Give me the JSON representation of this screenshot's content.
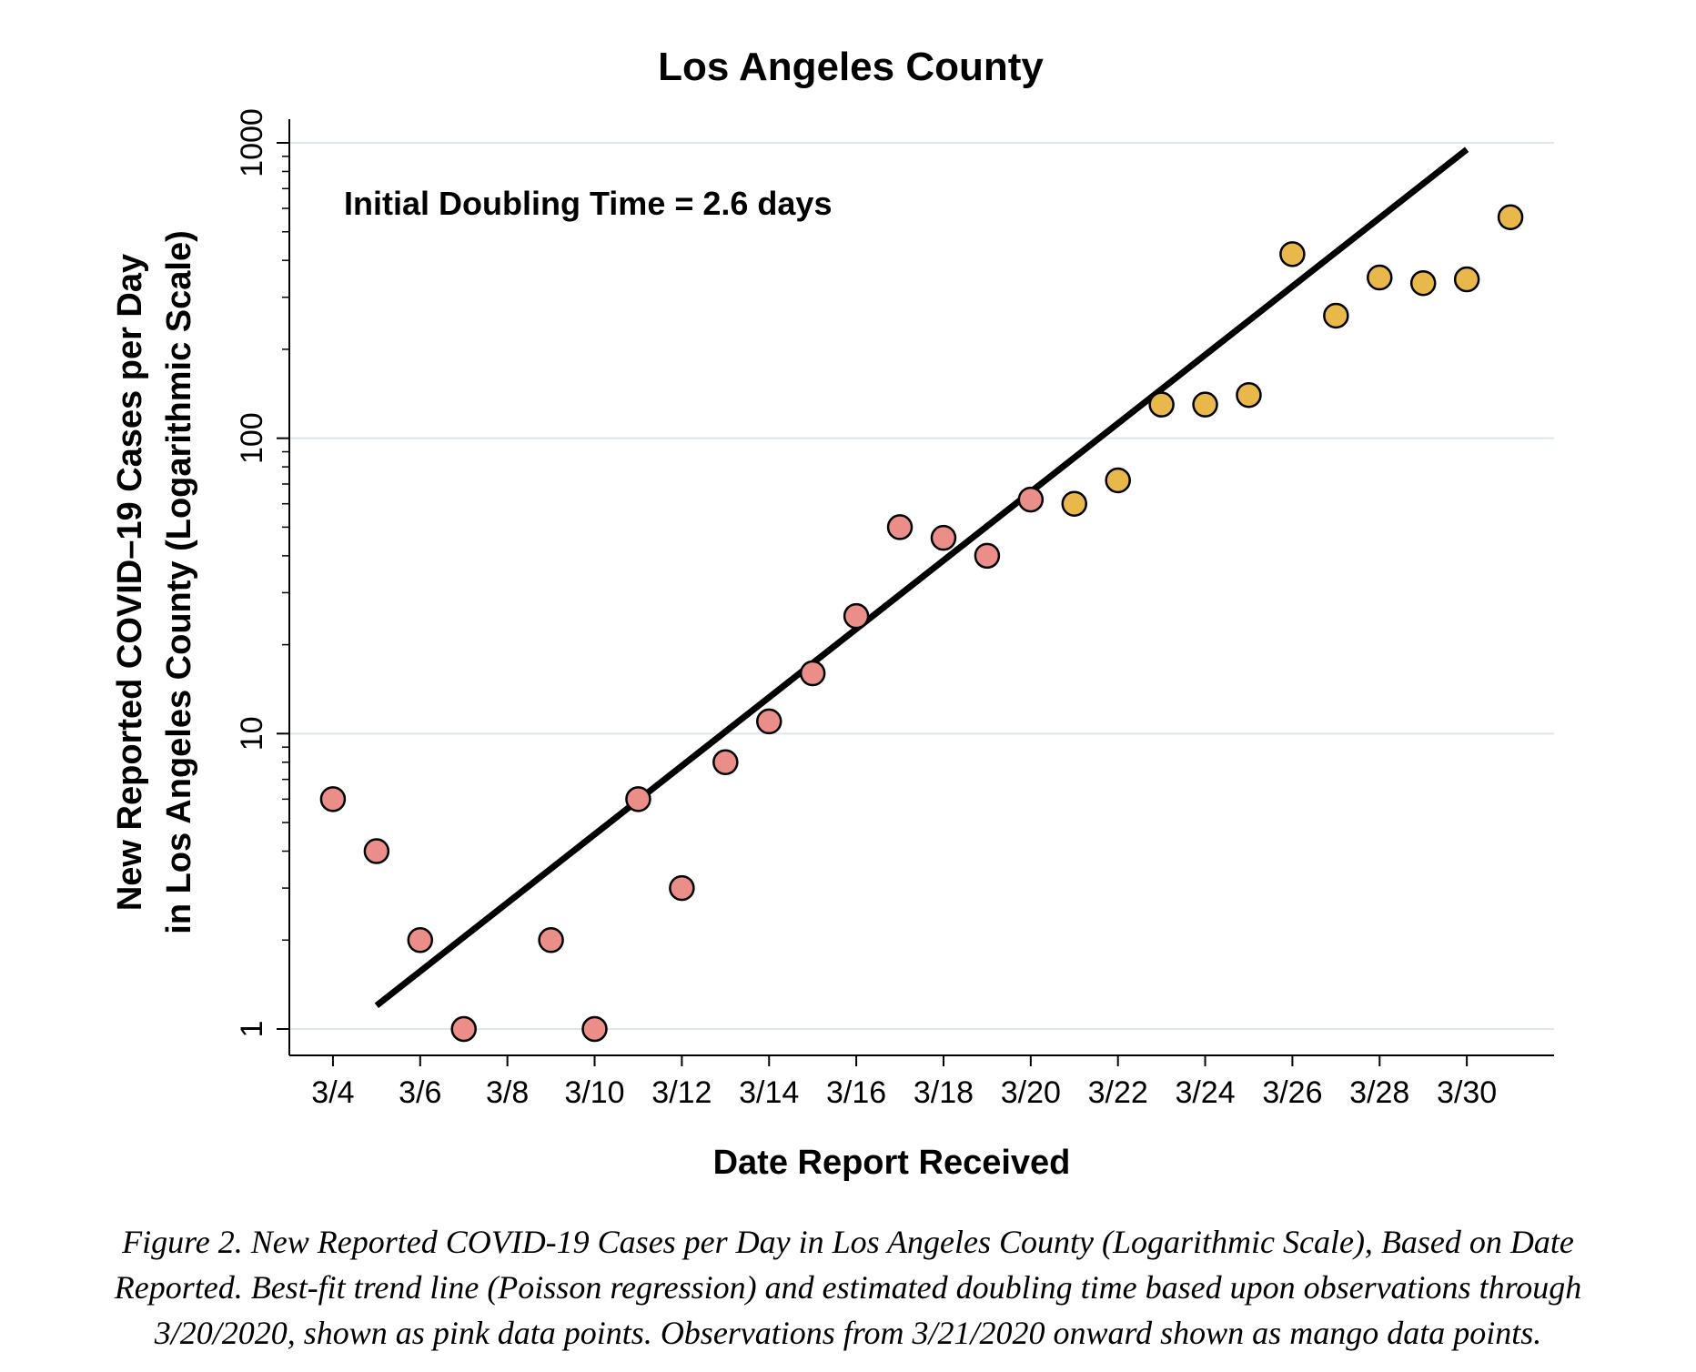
{
  "chart_data": {
    "type": "scatter",
    "title": "Los Angeles County",
    "xlabel": "Date Report Received",
    "ylabel_lines": [
      "New Reported COVID–19 Cases per Day",
      "in  Los Angeles County (Logarithmic Scale)"
    ],
    "yscale": "log",
    "ylim": [
      1,
      1000
    ],
    "yticks": [
      1,
      10,
      100,
      1000
    ],
    "grid": true,
    "x_day_range": [
      3,
      32
    ],
    "xtick_days": [
      4,
      6,
      8,
      10,
      12,
      14,
      16,
      18,
      20,
      22,
      24,
      26,
      28,
      30
    ],
    "xtick_labels": [
      "3/4",
      "3/6",
      "3/8",
      "3/10",
      "3/12",
      "3/14",
      "3/16",
      "3/18",
      "3/20",
      "3/22",
      "3/24",
      "3/26",
      "3/28",
      "3/30"
    ],
    "annotation": "Initial Doubling Time = 2.6 days",
    "series": [
      {
        "name": "Observations through 3/20/2020",
        "color": "#eb8e8a",
        "days": [
          4,
          5,
          6,
          7,
          9,
          10,
          11,
          12,
          13,
          14,
          15,
          16,
          17,
          18,
          19,
          20
        ],
        "values": [
          6,
          4,
          2,
          1,
          2,
          1,
          6,
          3,
          8,
          11,
          16,
          25,
          50,
          46,
          40,
          62
        ]
      },
      {
        "name": "Observations from 3/21/2020 onward",
        "color": "#e8b84a",
        "days": [
          21,
          22,
          23,
          24,
          25,
          26,
          27,
          28,
          29,
          30,
          31
        ],
        "values": [
          60,
          72,
          130,
          130,
          140,
          420,
          260,
          350,
          335,
          345,
          560
        ]
      }
    ],
    "trend_line": {
      "name": "Best-fit trend line (Poisson regression)",
      "color": "#000000",
      "start": {
        "day": 5,
        "value": 1.2
      },
      "end": {
        "day": 30,
        "value": 950
      }
    }
  },
  "caption_lines": [
    "Figure 2. New Reported COVID-19 Cases per Day in Los Angeles County (Logarithmic Scale), Based on Date",
    "Reported. Best-fit trend line (Poisson regression) and estimated doubling time based upon observations through",
    "3/20/2020, shown as pink data points. Observations from 3/21/2020 onward shown as mango data points."
  ]
}
